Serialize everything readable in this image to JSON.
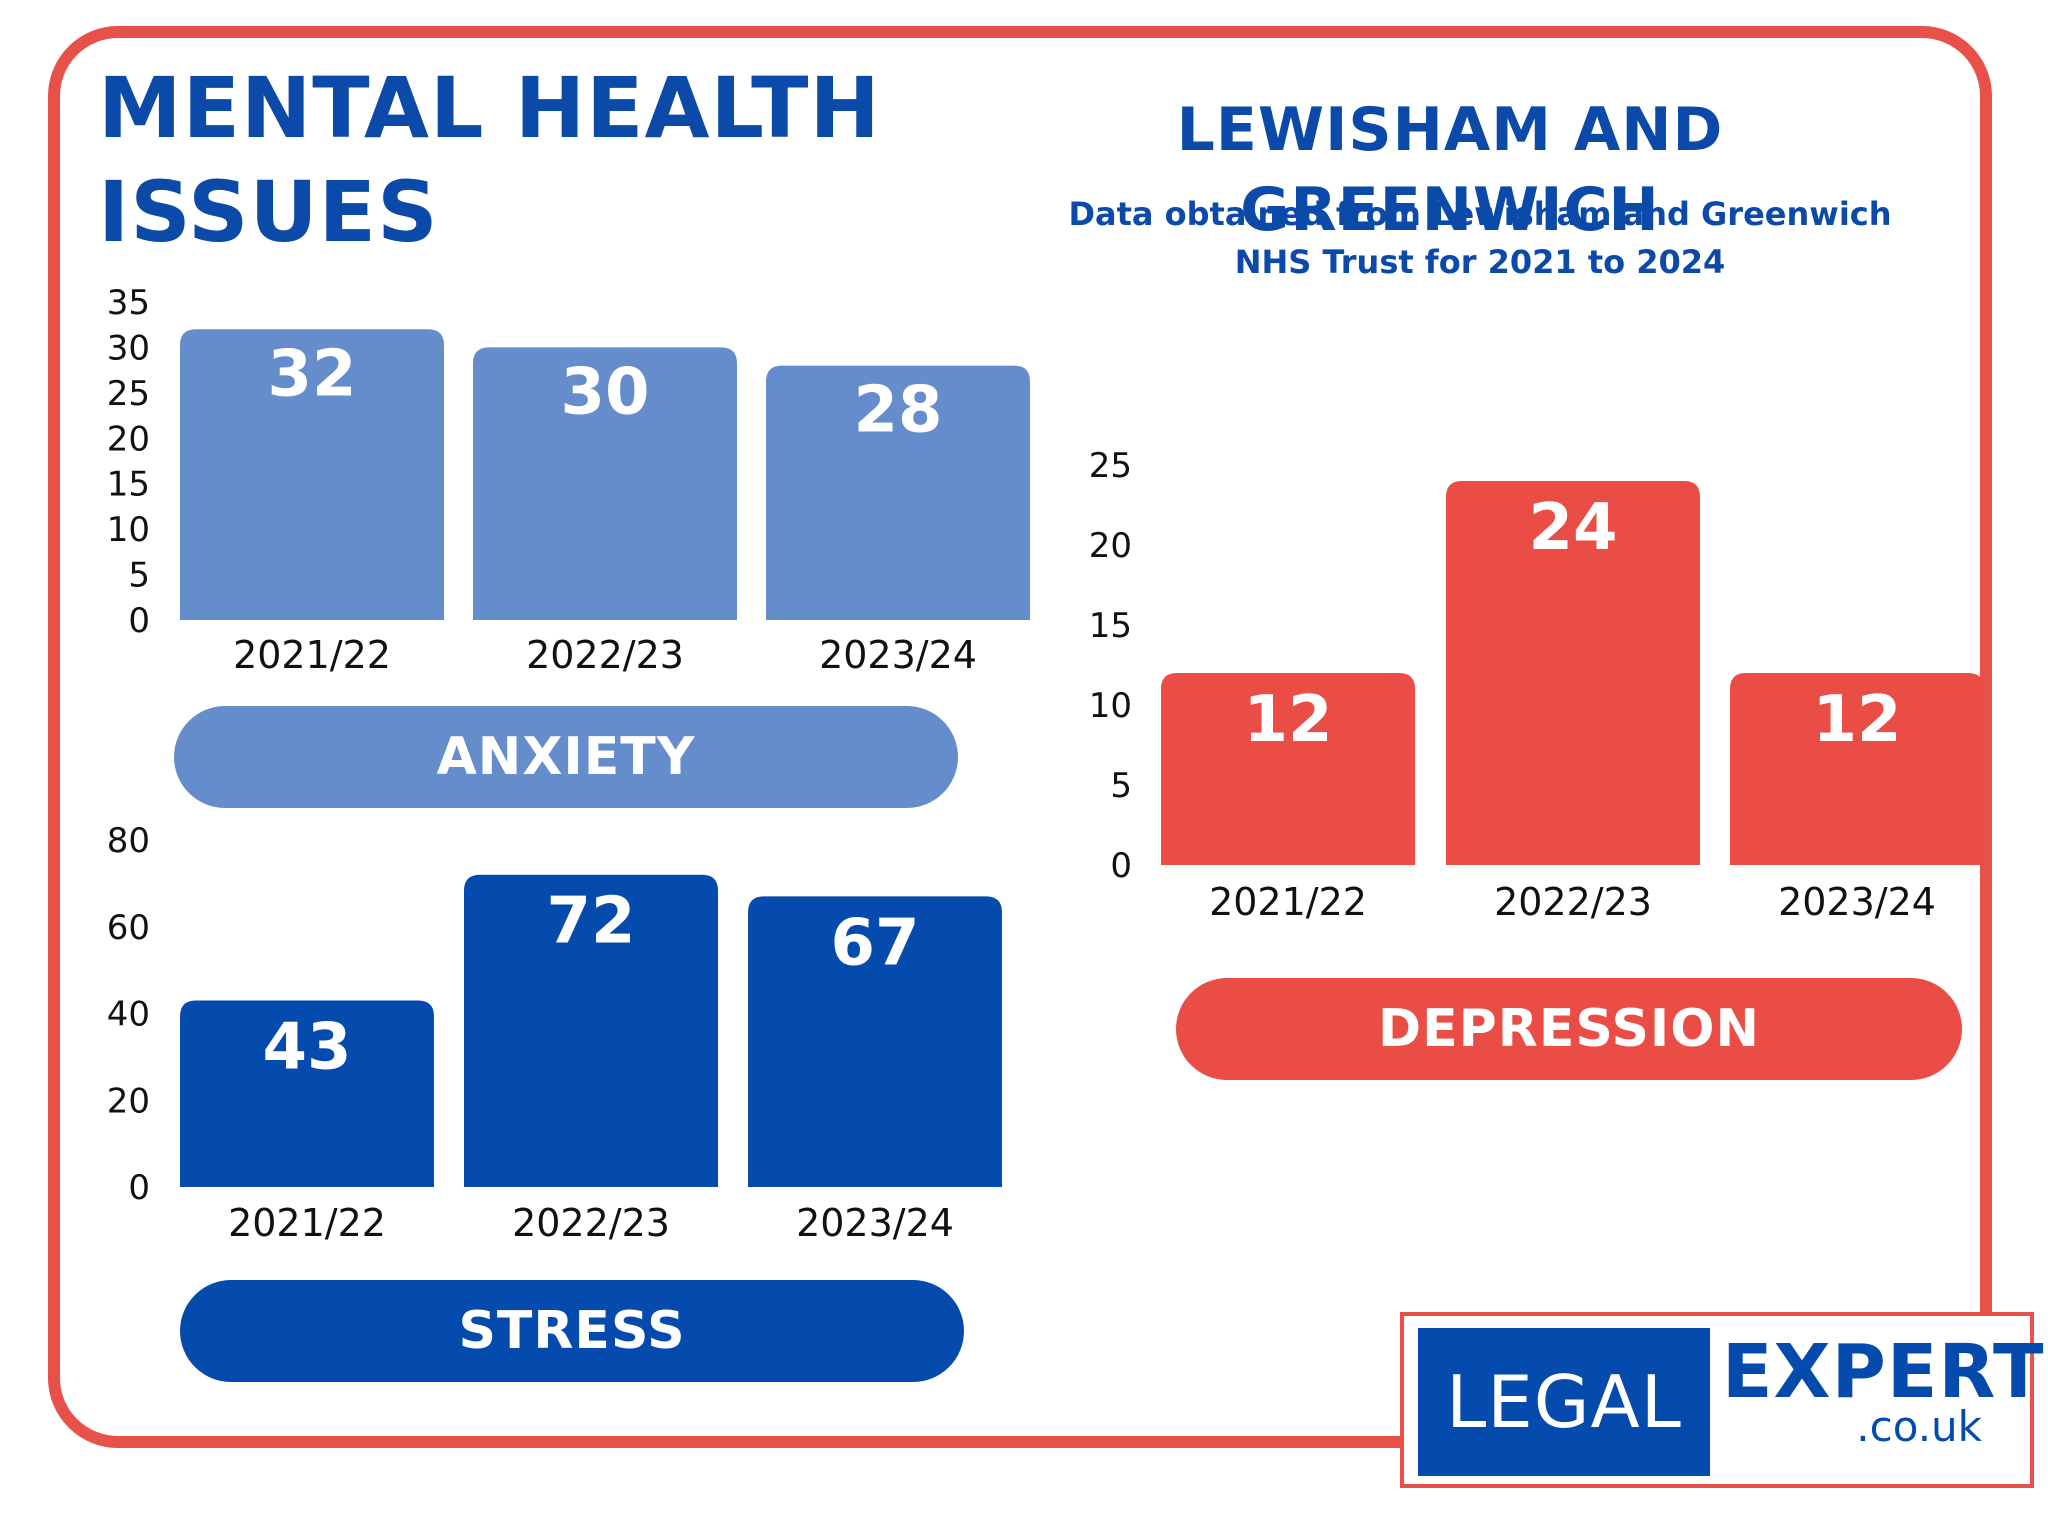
{
  "title": {
    "main_line1": "MENTAL HEALTH",
    "main_line2": "ISSUES",
    "region": "LEWISHAM AND GREENWICH",
    "source": "Data obtained from Lewisham and Greenwich NHS Trust for 2021 to 2024"
  },
  "colors": {
    "anxiety": "#658ccb",
    "stress": "#054bae",
    "depression": "#ea4d45",
    "frame": "#e8504a",
    "title": "#0b4aa8"
  },
  "chart_data": [
    {
      "id": "anxiety",
      "type": "bar",
      "title": "ANXIETY",
      "categories": [
        "2021/22",
        "2022/23",
        "2023/24"
      ],
      "values": [
        32,
        30,
        28
      ],
      "ylim": [
        0,
        35
      ],
      "yticks": [
        0,
        5,
        10,
        15,
        20,
        25,
        30,
        35
      ],
      "xlabel": "",
      "ylabel": "",
      "grid": false,
      "data_labels": true
    },
    {
      "id": "stress",
      "type": "bar",
      "title": "STRESS",
      "categories": [
        "2021/22",
        "2022/23",
        "2023/24"
      ],
      "values": [
        43,
        72,
        67
      ],
      "ylim": [
        0,
        80
      ],
      "yticks": [
        0,
        20,
        40,
        60,
        80
      ],
      "xlabel": "",
      "ylabel": "",
      "grid": false,
      "data_labels": true
    },
    {
      "id": "depression",
      "type": "bar",
      "title": "DEPRESSION",
      "categories": [
        "2021/22",
        "2022/23",
        "2023/24"
      ],
      "values": [
        12,
        24,
        12
      ],
      "ylim": [
        0,
        25
      ],
      "yticks": [
        0,
        5,
        10,
        15,
        20,
        25
      ],
      "xlabel": "",
      "ylabel": "",
      "grid": false,
      "data_labels": true
    }
  ],
  "logo": {
    "word1": "LEGAL",
    "word2": "EXPERT",
    "domain": ".co.uk"
  }
}
